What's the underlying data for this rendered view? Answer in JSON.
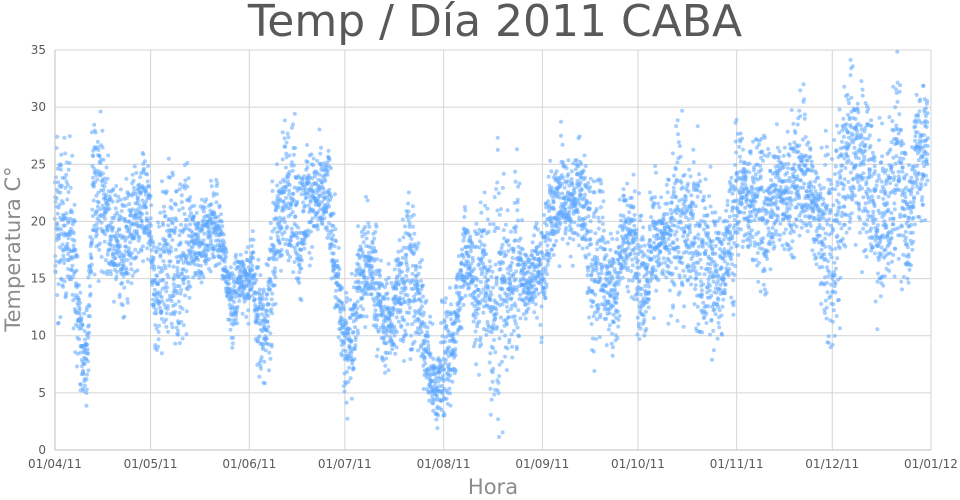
{
  "chart_data": {
    "type": "scatter",
    "title": "Temp / Día 2011 CABA",
    "xlabel": "Hora",
    "ylabel": "Temperatura C°",
    "xlim": [
      "2011-04-01",
      "2012-01-01"
    ],
    "ylim": [
      0,
      35
    ],
    "y_ticks": [
      "0",
      "5",
      "10",
      "15",
      "20",
      "25",
      "30",
      "35"
    ],
    "x_ticks": [
      {
        "date": "2011-04-01",
        "label": "01/04/11"
      },
      {
        "date": "2011-05-01",
        "label": "01/05/11"
      },
      {
        "date": "2011-06-01",
        "label": "01/06/11"
      },
      {
        "date": "2011-07-01",
        "label": "01/07/11"
      },
      {
        "date": "2011-08-01",
        "label": "01/08/11"
      },
      {
        "date": "2011-09-01",
        "label": "01/09/11"
      },
      {
        "date": "2011-10-01",
        "label": "01/10/11"
      },
      {
        "date": "2011-11-01",
        "label": "01/11/11"
      },
      {
        "date": "2011-12-01",
        "label": "01/12/11"
      },
      {
        "date": "2012-01-01",
        "label": "01/01/12"
      }
    ],
    "grid": true,
    "marker_color": "#5ca8ff",
    "series": [
      {
        "columns": [
          "date",
          "min_temp",
          "max_temp"
        ],
        "points": [
          [
            "2011-04-01",
            13.5,
            28.8
          ],
          [
            "2011-04-04",
            13.0,
            26.0
          ],
          [
            "2011-04-07",
            11.0,
            24.5
          ],
          [
            "2011-04-09",
            6.0,
            14.5
          ],
          [
            "2011-04-11",
            4.0,
            11.0
          ],
          [
            "2011-04-13",
            16.0,
            28.0
          ],
          [
            "2011-04-15",
            17.5,
            29.0
          ],
          [
            "2011-04-18",
            15.5,
            23.5
          ],
          [
            "2011-04-20",
            14.0,
            22.0
          ],
          [
            "2011-04-22",
            11.5,
            22.5
          ],
          [
            "2011-04-26",
            15.5,
            24.5
          ],
          [
            "2011-04-29",
            18.0,
            26.0
          ],
          [
            "2011-05-01",
            15.5,
            23.0
          ],
          [
            "2011-05-02",
            7.0,
            17.0
          ],
          [
            "2011-05-04",
            8.0,
            19.5
          ],
          [
            "2011-05-06",
            9.5,
            25.0
          ],
          [
            "2011-05-08",
            10.0,
            24.0
          ],
          [
            "2011-05-10",
            9.0,
            22.0
          ],
          [
            "2011-05-12",
            10.5,
            25.5
          ],
          [
            "2011-05-14",
            15.0,
            22.0
          ],
          [
            "2011-05-17",
            15.5,
            21.0
          ],
          [
            "2011-05-20",
            16.0,
            22.5
          ],
          [
            "2011-05-22",
            16.5,
            24.0
          ],
          [
            "2011-05-25",
            12.5,
            17.0
          ],
          [
            "2011-05-27",
            8.0,
            16.5
          ],
          [
            "2011-05-29",
            13.0,
            17.5
          ],
          [
            "2011-06-01",
            12.0,
            17.0
          ],
          [
            "2011-06-02",
            13.0,
            19.5
          ],
          [
            "2011-06-04",
            7.0,
            16.5
          ],
          [
            "2011-06-06",
            6.5,
            13.0
          ],
          [
            "2011-06-08",
            9.5,
            22.0
          ],
          [
            "2011-06-10",
            14.0,
            25.0
          ],
          [
            "2011-06-12",
            16.5,
            27.5
          ],
          [
            "2011-06-14",
            17.0,
            29.5
          ],
          [
            "2011-06-17",
            13.0,
            24.5
          ],
          [
            "2011-06-19",
            18.0,
            26.0
          ],
          [
            "2011-06-26",
            18.0,
            26.0
          ],
          [
            "2011-07-01",
            4.0,
            12.5
          ],
          [
            "2011-07-03",
            5.5,
            14.0
          ],
          [
            "2011-07-05",
            10.0,
            18.0
          ],
          [
            "2011-07-07",
            11.5,
            21.5
          ],
          [
            "2011-07-09",
            12.0,
            20.0
          ],
          [
            "2011-07-11",
            10.0,
            19.5
          ],
          [
            "2011-07-13",
            7.0,
            14.5
          ],
          [
            "2011-07-16",
            7.5,
            15.5
          ],
          [
            "2011-07-18",
            9.5,
            19.0
          ],
          [
            "2011-07-21",
            8.5,
            24.5
          ],
          [
            "2011-07-23",
            9.0,
            20.0
          ],
          [
            "2011-07-26",
            6.0,
            14.0
          ],
          [
            "2011-07-28",
            3.5,
            10.0
          ],
          [
            "2011-07-30",
            1.5,
            8.0
          ],
          [
            "2011-08-01",
            2.5,
            14.5
          ],
          [
            "2011-08-04",
            5.0,
            13.0
          ],
          [
            "2011-08-08",
            14.0,
            21.5
          ],
          [
            "2011-08-10",
            10.5,
            18.5
          ],
          [
            "2011-08-12",
            8.5,
            19.0
          ],
          [
            "2011-08-14",
            11.0,
            24.0
          ],
          [
            "2011-08-16",
            3.0,
            16.5
          ],
          [
            "2011-08-18",
            2.5,
            27.0
          ],
          [
            "2011-08-20",
            7.0,
            21.0
          ],
          [
            "2011-08-22",
            10.0,
            17.5
          ],
          [
            "2011-08-24",
            8.5,
            25.5
          ],
          [
            "2011-08-26",
            11.5,
            18.5
          ],
          [
            "2011-08-28",
            12.5,
            17.0
          ],
          [
            "2011-09-01",
            11.0,
            21.0
          ],
          [
            "2011-09-03",
            15.5,
            24.5
          ],
          [
            "2011-09-05",
            17.0,
            25.5
          ],
          [
            "2011-09-07",
            18.0,
            27.0
          ],
          [
            "2011-09-10",
            17.5,
            24.5
          ],
          [
            "2011-09-13",
            19.0,
            28.0
          ],
          [
            "2011-09-15",
            14.5,
            24.0
          ],
          [
            "2011-09-17",
            8.0,
            22.0
          ],
          [
            "2011-09-19",
            10.0,
            26.0
          ],
          [
            "2011-09-21",
            10.5,
            20.0
          ],
          [
            "2011-09-24",
            8.5,
            18.0
          ],
          [
            "2011-09-26",
            15.5,
            22.5
          ],
          [
            "2011-09-30",
            14.0,
            23.0
          ],
          [
            "2011-10-02",
            9.0,
            20.5
          ],
          [
            "2011-10-04",
            11.5,
            18.5
          ],
          [
            "2011-10-06",
            13.0,
            24.5
          ],
          [
            "2011-10-08",
            15.5,
            21.0
          ],
          [
            "2011-10-10",
            14.0,
            22.5
          ],
          [
            "2011-10-12",
            11.5,
            25.5
          ],
          [
            "2011-10-14",
            12.5,
            28.0
          ],
          [
            "2011-10-16",
            13.0,
            24.5
          ],
          [
            "2011-10-18",
            14.5,
            25.5
          ],
          [
            "2011-10-20",
            10.5,
            26.0
          ],
          [
            "2011-10-22",
            11.0,
            23.0
          ],
          [
            "2011-10-25",
            8.5,
            21.5
          ],
          [
            "2011-10-27",
            11.0,
            19.5
          ],
          [
            "2011-10-29",
            13.5,
            22.0
          ],
          [
            "2011-10-31",
            13.0,
            26.0
          ],
          [
            "2011-11-02",
            19.0,
            29.0
          ],
          [
            "2011-11-04",
            18.0,
            25.5
          ],
          [
            "2011-11-06",
            16.5,
            27.5
          ],
          [
            "2011-11-08",
            16.0,
            29.5
          ],
          [
            "2011-11-10",
            13.0,
            25.0
          ],
          [
            "2011-11-12",
            17.5,
            26.5
          ],
          [
            "2011-11-14",
            18.5,
            27.5
          ],
          [
            "2011-11-16",
            17.5,
            26.0
          ],
          [
            "2011-11-18",
            17.0,
            28.5
          ],
          [
            "2011-11-20",
            19.0,
            30.5
          ],
          [
            "2011-11-22",
            18.5,
            31.5
          ],
          [
            "2011-11-24",
            18.5,
            26.5
          ],
          [
            "2011-12-01",
            9.0,
            24.5
          ],
          [
            "2011-12-03",
            11.5,
            27.5
          ],
          [
            "2011-12-05",
            17.0,
            32.0
          ],
          [
            "2011-12-07",
            19.5,
            32.5
          ],
          [
            "2011-12-09",
            19.0,
            31.5
          ],
          [
            "2011-12-11",
            18.0,
            31.0
          ],
          [
            "2011-12-13",
            17.0,
            30.0
          ],
          [
            "2011-12-15",
            13.0,
            27.0
          ],
          [
            "2011-12-17",
            14.0,
            26.0
          ],
          [
            "2011-12-19",
            15.5,
            28.0
          ],
          [
            "2011-12-21",
            18.5,
            33.5
          ],
          [
            "2011-12-23",
            15.5,
            31.5
          ],
          [
            "2011-12-25",
            12.0,
            24.0
          ],
          [
            "2011-12-27",
            20.0,
            30.5
          ],
          [
            "2011-12-29",
            21.0,
            32.0
          ],
          [
            "2011-12-31",
            22.0,
            30.5
          ]
        ]
      }
    ]
  }
}
